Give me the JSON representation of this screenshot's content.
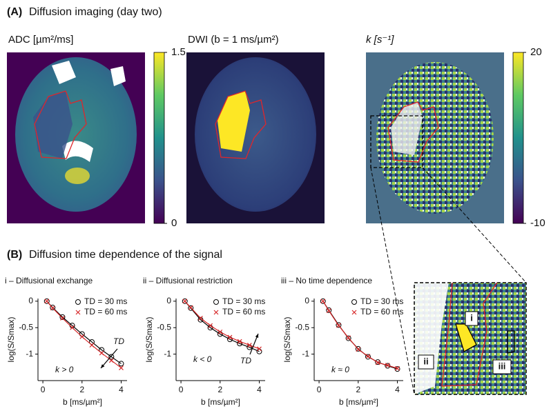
{
  "figure": {
    "panel_a": {
      "letter": "(A)",
      "title": "Diffusion imaging (day two)"
    },
    "images": [
      {
        "label": "ADC [µm²/ms]"
      },
      {
        "label": "DWI (b = 1 ms/µm²)"
      },
      {
        "label": "k [s⁻¹]"
      }
    ],
    "colorbars": [
      {
        "lim": [
          0,
          1.5
        ],
        "ticks": [
          0,
          1.5
        ]
      },
      {
        "lim": [
          -10,
          20
        ],
        "ticks": [
          -10,
          20
        ]
      }
    ],
    "panel_b": {
      "letter": "(B)",
      "title": "Diffusion time dependence of the signal"
    },
    "inset_labels": [
      "i",
      "ii",
      "iii"
    ]
  },
  "chart_data": [
    {
      "type": "line",
      "title": "i – Diffusional exchange",
      "x_label": "b [ms/µm²]",
      "y_label": "log(S/Smax)",
      "x": [
        0.2,
        0.5,
        1,
        1.5,
        2,
        2.5,
        3,
        3.5,
        4
      ],
      "series": [
        {
          "name": "TD = 30 ms",
          "color": "#000000",
          "values": [
            0,
            -0.12,
            -0.3,
            -0.46,
            -0.62,
            -0.77,
            -0.92,
            -1.05,
            -1.18
          ]
        },
        {
          "name": "TD = 60 ms",
          "color": "#d62728",
          "values": [
            0,
            -0.13,
            -0.32,
            -0.5,
            -0.67,
            -0.83,
            -0.98,
            -1.12,
            -1.26
          ]
        }
      ],
      "xlim": [
        -0.25,
        4.3
      ],
      "ylim": [
        -1.5,
        0.05
      ],
      "xticks": [
        0,
        2,
        4
      ],
      "yticks": [
        0,
        -0.5,
        -1
      ],
      "annotations": [
        "k > 0",
        "TD"
      ]
    },
    {
      "type": "line",
      "title": "ii – Diffusional restriction",
      "x_label": "b [ms/µm²]",
      "y_label": "log(S/Smax)",
      "x": [
        0.2,
        0.5,
        1,
        1.5,
        2,
        2.5,
        3,
        3.5,
        4
      ],
      "series": [
        {
          "name": "TD = 30 ms",
          "color": "#000000",
          "values": [
            0,
            -0.13,
            -0.35,
            -0.5,
            -0.62,
            -0.72,
            -0.8,
            -0.87,
            -0.95
          ]
        },
        {
          "name": "TD = 60 ms",
          "color": "#d62728",
          "values": [
            0,
            -0.12,
            -0.32,
            -0.46,
            -0.58,
            -0.68,
            -0.76,
            -0.83,
            -0.9
          ]
        }
      ],
      "xlim": [
        -0.25,
        4.3
      ],
      "ylim": [
        -1.5,
        0.05
      ],
      "xticks": [
        0,
        2,
        4
      ],
      "yticks": [
        0,
        -0.5,
        -1
      ],
      "annotations": [
        "k < 0",
        "TD"
      ]
    },
    {
      "type": "line",
      "title": "iii – No time dependence",
      "x_label": "b [ms/µm²]",
      "y_label": "log(S/Smax)",
      "x": [
        0.2,
        0.5,
        1,
        1.5,
        2,
        2.5,
        3,
        3.5,
        4
      ],
      "series": [
        {
          "name": "TD = 30 ms",
          "color": "#000000",
          "values": [
            0,
            -0.17,
            -0.45,
            -0.7,
            -0.9,
            -1.05,
            -1.15,
            -1.22,
            -1.28
          ]
        },
        {
          "name": "TD = 60 ms",
          "color": "#d62728",
          "values": [
            0,
            -0.18,
            -0.46,
            -0.69,
            -0.91,
            -1.04,
            -1.16,
            -1.21,
            -1.27
          ]
        }
      ],
      "xlim": [
        -0.25,
        4.3
      ],
      "ylim": [
        -1.5,
        0.05
      ],
      "xticks": [
        0,
        2,
        4
      ],
      "yticks": [
        0,
        -0.5,
        -1
      ],
      "annotations": [
        "k ≈ 0"
      ]
    }
  ]
}
